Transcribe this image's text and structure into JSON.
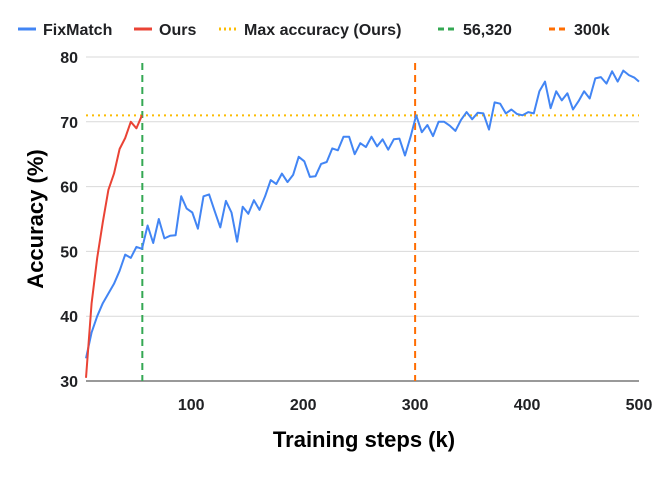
{
  "chart_data": {
    "type": "line",
    "title": "",
    "xlabel": "Training steps (k)",
    "ylabel": "Accuracy (%)",
    "xlim": [
      6,
      500
    ],
    "ylim": [
      30,
      80
    ],
    "x_ticks": [
      100,
      200,
      300,
      400,
      500
    ],
    "y_ticks": [
      30,
      40,
      50,
      60,
      70,
      80
    ],
    "grid": "horizontal",
    "legend_position": "top",
    "series": [
      {
        "name": "FixMatch",
        "color": "#4285f4",
        "style": "solid",
        "x": [
          6,
          11,
          16,
          21,
          26,
          31,
          36,
          41,
          46,
          51,
          56,
          61,
          66,
          71,
          76,
          81,
          86,
          91,
          96,
          101,
          106,
          111,
          116,
          121,
          126,
          131,
          136,
          141,
          146,
          151,
          156,
          161,
          166,
          171,
          176,
          181,
          186,
          191,
          196,
          201,
          206,
          211,
          216,
          221,
          226,
          231,
          236,
          241,
          246,
          251,
          256,
          261,
          266,
          271,
          276,
          281,
          286,
          291,
          296,
          301,
          306,
          311,
          316,
          321,
          326,
          331,
          336,
          341,
          346,
          351,
          356,
          361,
          366,
          371,
          376,
          381,
          386,
          391,
          396,
          401,
          406,
          411,
          416,
          421,
          426,
          431,
          436,
          441,
          446,
          451,
          456,
          461,
          466,
          471,
          476,
          481,
          486,
          491,
          496,
          500
        ],
        "y": [
          33.5,
          37.5,
          40,
          42,
          43.5,
          45,
          47,
          49.5,
          49,
          50.7,
          50.4,
          54,
          51.3,
          55,
          52,
          52.4,
          52.5,
          58.5,
          56.6,
          56,
          53.5,
          58.5,
          58.8,
          56.2,
          53.7,
          57.8,
          56,
          51.5,
          56.9,
          55.8,
          57.9,
          56.4,
          58.5,
          61,
          60.4,
          62,
          60.7,
          61.8,
          64.6,
          63.9,
          61.5,
          61.6,
          63.5,
          63.8,
          65.9,
          65.6,
          67.7,
          67.7,
          65,
          66.7,
          66.1,
          67.7,
          66.2,
          67.3,
          65.7,
          67.3,
          67.4,
          64.8,
          67.7,
          71,
          68.4,
          69.5,
          67.8,
          70,
          70,
          69.4,
          68.6,
          70.3,
          71.5,
          70.4,
          71.4,
          71.3,
          68.8,
          73,
          72.8,
          71.3,
          71.9,
          71.2,
          71,
          71.5,
          71.3,
          74.7,
          76.2,
          72.1,
          74.7,
          73.3,
          74.4,
          71.9,
          73.2,
          74.7,
          73.6,
          76.7,
          76.9,
          75.9,
          77.8,
          76.2,
          77.9,
          77.2,
          76.8,
          76.2
        ]
      },
      {
        "name": "Ours",
        "color": "#ea4335",
        "style": "solid",
        "x": [
          6,
          11,
          16,
          21,
          26,
          31,
          36,
          41,
          46,
          51,
          56
        ],
        "y": [
          30.5,
          42,
          49,
          54.5,
          59.5,
          62,
          65.8,
          67.5,
          70,
          69,
          71
        ]
      },
      {
        "name": "Max accuracy (Ours)",
        "color": "#fbbc04",
        "style": "dotted",
        "value": 71
      },
      {
        "name": "56,320",
        "color": "#34a853",
        "style": "dashed",
        "value": 56.32
      },
      {
        "name": "300k",
        "color": "#ff6d01",
        "style": "dashed",
        "value": 300
      }
    ]
  }
}
